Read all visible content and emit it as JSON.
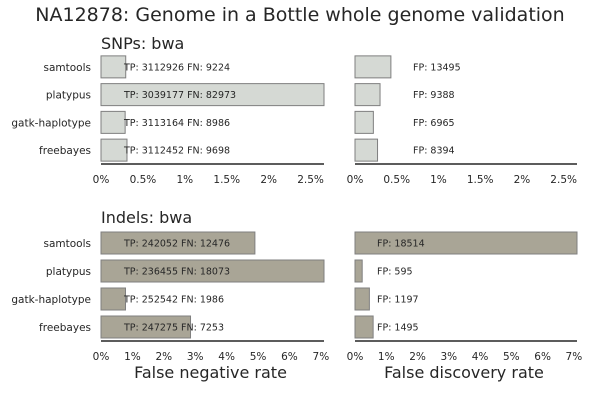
{
  "title": "NA12878: Genome in a Bottle whole genome validation",
  "colors": {
    "snp_bar": "#d5d9d4",
    "indel_bar": "#a9a596",
    "bar_edge": "#7f7f7f",
    "axis": "#262626",
    "text": "#262626"
  },
  "chart_data": [
    {
      "type": "bar",
      "orientation": "horizontal",
      "title": "SNPs: bwa",
      "xlabel": "",
      "categories": [
        "samtools",
        "platypus",
        "gatk-haplotype",
        "freebayes"
      ],
      "values": [
        0.295,
        2.66,
        0.288,
        0.31
      ],
      "xlim": [
        0,
        2.66
      ],
      "xticks": [
        "0%",
        "0.5%",
        "1%",
        "1.5%",
        "2%",
        "2.5%"
      ],
      "xtick_values": [
        0,
        0.5,
        1,
        1.5,
        2,
        2.5
      ],
      "labels": [
        "TP: 3112926 FN: 9224",
        "TP: 3039177 FN: 82973",
        "TP: 3113164 FN: 8986",
        "TP: 3112452 FN: 9698"
      ],
      "grid": false
    },
    {
      "type": "bar",
      "orientation": "horizontal",
      "title": "",
      "xlabel": "",
      "categories": [
        "samtools",
        "platypus",
        "gatk-haplotype",
        "freebayes"
      ],
      "values": [
        0.43,
        0.3,
        0.22,
        0.27
      ],
      "xlim": [
        0,
        2.66
      ],
      "xticks": [
        "0%",
        "0.5%",
        "1%",
        "1.5%",
        "2%",
        "2.5%"
      ],
      "xtick_values": [
        0,
        0.5,
        1,
        1.5,
        2,
        2.5
      ],
      "labels": [
        "FP: 13495",
        "FP: 9388",
        "FP: 6965",
        "FP: 8394"
      ],
      "grid": false
    },
    {
      "type": "bar",
      "orientation": "horizontal",
      "title": "Indels: bwa",
      "xlabel": "False negative rate",
      "categories": [
        "samtools",
        "platypus",
        "gatk-haplotype",
        "freebayes"
      ],
      "values": [
        4.9,
        7.1,
        0.78,
        2.85
      ],
      "xlim": [
        0,
        7.1
      ],
      "xticks": [
        "0%",
        "1%",
        "2%",
        "3%",
        "4%",
        "5%",
        "6%",
        "7%"
      ],
      "xtick_values": [
        0,
        1,
        2,
        3,
        4,
        5,
        6,
        7
      ],
      "labels": [
        "TP: 242052 FN: 12476",
        "TP: 236455 FN: 18073",
        "TP: 252542 FN: 1986",
        "TP: 247275 FN: 7253"
      ],
      "grid": false
    },
    {
      "type": "bar",
      "orientation": "horizontal",
      "title": "",
      "xlabel": "False discovery rate",
      "categories": [
        "samtools",
        "platypus",
        "gatk-haplotype",
        "freebayes"
      ],
      "values": [
        7.1,
        0.23,
        0.46,
        0.58
      ],
      "xlim": [
        0,
        7.1
      ],
      "xticks": [
        "0%",
        "1%",
        "2%",
        "3%",
        "4%",
        "5%",
        "6%",
        "7%"
      ],
      "xtick_values": [
        0,
        1,
        2,
        3,
        4,
        5,
        6,
        7
      ],
      "labels": [
        "FP: 18514",
        "FP: 595",
        "FP: 1197",
        "FP: 1495"
      ],
      "grid": false
    }
  ]
}
